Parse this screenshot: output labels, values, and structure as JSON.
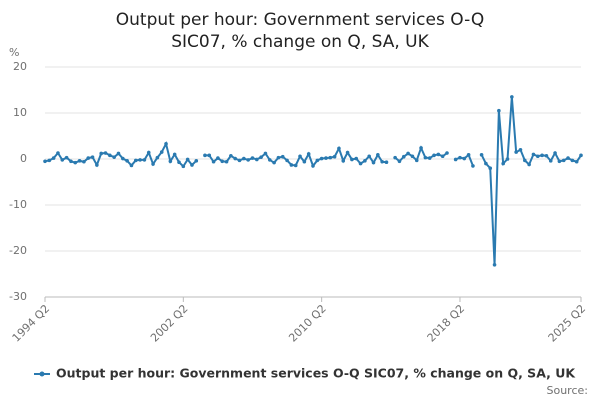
{
  "chart_data": {
    "type": "line",
    "title": "Output per hour: Government services O-Q SIC07, % change on Q, SA, UK",
    "y_label": "%",
    "source": "Source:",
    "categories": [
      "1994 Q2",
      null,
      null,
      null,
      null,
      null,
      null,
      null,
      null,
      null,
      null,
      null,
      null,
      null,
      null,
      null,
      null,
      null,
      null,
      null,
      null,
      null,
      null,
      null,
      null,
      null,
      null,
      null,
      null,
      null,
      null,
      null,
      "2002 Q2",
      null,
      null,
      null,
      null,
      null,
      null,
      null,
      null,
      null,
      null,
      null,
      null,
      null,
      null,
      null,
      null,
      null,
      null,
      null,
      null,
      null,
      null,
      null,
      null,
      null,
      null,
      null,
      null,
      null,
      null,
      null,
      "2010 Q2",
      null,
      null,
      null,
      null,
      null,
      null,
      null,
      null,
      null,
      null,
      null,
      null,
      null,
      null,
      null,
      null,
      null,
      null,
      null,
      null,
      null,
      null,
      null,
      null,
      null,
      null,
      null,
      null,
      null,
      null,
      null,
      "2018 Q2",
      null,
      null,
      null,
      null,
      null,
      null,
      null,
      null,
      null,
      null,
      null,
      null,
      null,
      null,
      null,
      null,
      null,
      null,
      null,
      null,
      null,
      null,
      null,
      null,
      null,
      null,
      null,
      "2025 Q2"
    ],
    "series": [
      {
        "name": "Output per hour: Government services O-Q SIC07, % change on Q, SA, UK",
        "color": "#2a7ab0",
        "values": [
          -0.5,
          -0.3,
          0.2,
          1.3,
          -0.2,
          0.3,
          -0.5,
          -0.8,
          -0.4,
          -0.6,
          0.2,
          0.4,
          -1.3,
          1.2,
          1.3,
          0.8,
          0.4,
          1.2,
          0.1,
          -0.4,
          -1.4,
          -0.3,
          -0.2,
          -0.2,
          1.4,
          -1.1,
          0.3,
          1.5,
          3.3,
          -0.5,
          1.0,
          -0.7,
          -1.6,
          -0.1,
          -1.3,
          -0.4,
          null,
          0.8,
          0.8,
          -0.6,
          0.2,
          -0.5,
          -0.6,
          0.7,
          0.1,
          -0.3,
          0.1,
          -0.2,
          0.2,
          -0.1,
          0.4,
          1.2,
          -0.2,
          -0.8,
          0.3,
          0.5,
          -0.3,
          -1.3,
          -1.4,
          0.6,
          -0.6,
          1.1,
          -1.5,
          -0.3,
          0.1,
          0.2,
          0.3,
          0.5,
          2.3,
          -0.4,
          1.4,
          -0.1,
          0.1,
          -1.0,
          -0.4,
          0.6,
          -0.8,
          0.9,
          -0.6,
          -0.7,
          null,
          0.3,
          -0.5,
          0.5,
          1.2,
          0.6,
          -0.3,
          2.4,
          0.3,
          0.2,
          0.8,
          1.0,
          0.6,
          1.3,
          null,
          -0.1,
          0.3,
          0.1,
          0.9,
          -1.5,
          null,
          0.9,
          -1.0,
          -2.0,
          -23.0,
          10.5,
          -1.0,
          0.0,
          13.5,
          1.5,
          2.0,
          -0.3,
          -1.2,
          1.0,
          0.6,
          0.8,
          0.7,
          -0.4,
          1.3,
          -0.5,
          -0.3,
          0.2,
          -0.3,
          -0.6,
          0.8
        ]
      }
    ],
    "ylim": [
      -30,
      20
    ],
    "yticks": [
      20,
      10,
      0,
      -10,
      -20,
      -30
    ],
    "grid": true,
    "legend": "bottom"
  }
}
